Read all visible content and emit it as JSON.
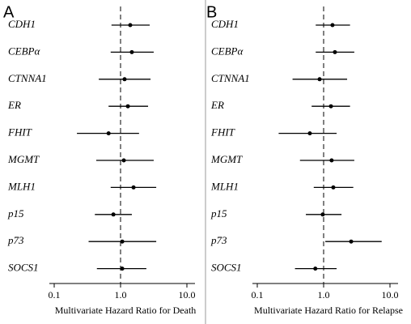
{
  "chart_data": [
    {
      "type": "forest",
      "panel_label": "A",
      "x_label": "Multivariate Hazard Ratio for Death",
      "categories": [
        "CDH1",
        "CEBPα",
        "CTNNA1",
        "ER",
        "FHIT",
        "MGMT",
        "MLH1",
        "p15",
        "p73",
        "SOCS1"
      ],
      "values": [
        1.4,
        1.48,
        1.15,
        1.29,
        0.66,
        1.12,
        1.57,
        0.78,
        1.06,
        1.06
      ],
      "lower": [
        0.73,
        0.71,
        0.47,
        0.66,
        0.22,
        0.43,
        0.71,
        0.41,
        0.33,
        0.44
      ],
      "upper": [
        2.75,
        3.16,
        2.83,
        2.6,
        1.9,
        3.16,
        3.45,
        1.48,
        3.45,
        2.45
      ],
      "xlim": [
        0.1,
        10
      ],
      "xticks": [
        0.1,
        {
          "value": 1,
          "label": "1.0"
        },
        {
          "value": 10,
          "label": "10.0"
        }
      ],
      "log_scale": true,
      "reference": 1,
      "color": "#000000"
    },
    {
      "type": "forest",
      "panel_label": "B",
      "x_label": "Multivariate Hazard Ratio for Relapse",
      "categories": [
        "CDH1",
        "CEBPα",
        "CTNNA1",
        "ER",
        "FHIT",
        "MGMT",
        "MLH1",
        "p15",
        "p73",
        "SOCS1"
      ],
      "values": [
        1.36,
        1.48,
        0.87,
        1.29,
        0.62,
        1.32,
        1.4,
        0.97,
        2.6,
        0.75
      ],
      "lower": [
        0.76,
        0.76,
        0.34,
        0.66,
        0.21,
        0.44,
        0.71,
        0.54,
        1.06,
        0.37
      ],
      "upper": [
        2.5,
        2.9,
        2.26,
        2.5,
        1.57,
        2.9,
        2.8,
        1.86,
        7.5,
        1.57
      ],
      "xlim": [
        0.1,
        10
      ],
      "xticks": [
        0.1,
        {
          "value": 1,
          "label": "1.0"
        },
        {
          "value": 10,
          "label": "10.0"
        }
      ],
      "log_scale": true,
      "reference": 1,
      "color": "#000000"
    }
  ]
}
